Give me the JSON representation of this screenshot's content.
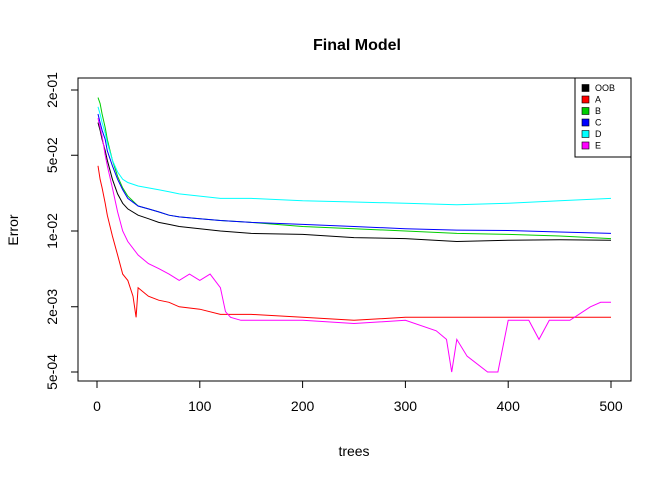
{
  "chart_data": {
    "type": "line",
    "title": "Final Model",
    "xlabel": "trees",
    "ylabel": "Error",
    "xlim": [
      0,
      500
    ],
    "ylim": [
      0.0004,
      0.2
    ],
    "y_scale": "log",
    "x_ticks": [
      0,
      100,
      200,
      300,
      400,
      500
    ],
    "x_tick_labels": [
      "0",
      "100",
      "200",
      "300",
      "400",
      "500"
    ],
    "y_ticks": [
      0.0005,
      0.002,
      0.01,
      0.05,
      0.2
    ],
    "y_tick_labels": [
      "5e-04",
      "2e-03",
      "1e-02",
      "5e-02",
      "2e-01"
    ],
    "legend_position": "top-right",
    "grid": false,
    "series": [
      {
        "name": "OOB",
        "color": "#000000",
        "x": [
          1,
          3,
          5,
          8,
          10,
          15,
          20,
          25,
          30,
          40,
          50,
          60,
          70,
          80,
          100,
          120,
          150,
          200,
          250,
          300,
          350,
          400,
          450,
          500
        ],
        "y": [
          0.1,
          0.085,
          0.07,
          0.055,
          0.045,
          0.03,
          0.022,
          0.018,
          0.016,
          0.014,
          0.013,
          0.012,
          0.0115,
          0.011,
          0.0105,
          0.01,
          0.0095,
          0.0093,
          0.0087,
          0.0085,
          0.008,
          0.0082,
          0.0083,
          0.0082
        ]
      },
      {
        "name": "A",
        "color": "#ff0000",
        "x": [
          1,
          3,
          5,
          8,
          10,
          15,
          20,
          25,
          30,
          35,
          38,
          40,
          50,
          60,
          70,
          80,
          100,
          120,
          150,
          200,
          250,
          300,
          350,
          400,
          450,
          500
        ],
        "y": [
          0.04,
          0.03,
          0.025,
          0.018,
          0.014,
          0.009,
          0.006,
          0.004,
          0.0035,
          0.0025,
          0.0016,
          0.003,
          0.0025,
          0.0023,
          0.0022,
          0.002,
          0.0019,
          0.0017,
          0.0017,
          0.0016,
          0.0015,
          0.0016,
          0.0016,
          0.0016,
          0.0016,
          0.0016
        ]
      },
      {
        "name": "B",
        "color": "#00cd00",
        "x": [
          1,
          3,
          5,
          8,
          10,
          15,
          20,
          25,
          30,
          40,
          50,
          60,
          70,
          80,
          100,
          120,
          150,
          200,
          250,
          300,
          350,
          400,
          450,
          500
        ],
        "y": [
          0.17,
          0.15,
          0.12,
          0.09,
          0.07,
          0.045,
          0.032,
          0.025,
          0.021,
          0.017,
          0.016,
          0.015,
          0.014,
          0.0135,
          0.013,
          0.0125,
          0.012,
          0.011,
          0.0105,
          0.01,
          0.0095,
          0.0093,
          0.009,
          0.0085
        ]
      },
      {
        "name": "C",
        "color": "#0000ff",
        "x": [
          1,
          3,
          5,
          8,
          10,
          15,
          20,
          25,
          30,
          40,
          50,
          60,
          70,
          80,
          100,
          120,
          150,
          200,
          250,
          300,
          350,
          400,
          450,
          500
        ],
        "y": [
          0.12,
          0.1,
          0.085,
          0.07,
          0.055,
          0.04,
          0.03,
          0.024,
          0.02,
          0.017,
          0.016,
          0.015,
          0.014,
          0.0135,
          0.013,
          0.0125,
          0.012,
          0.0115,
          0.011,
          0.0105,
          0.0102,
          0.0101,
          0.0098,
          0.0095
        ]
      },
      {
        "name": "D",
        "color": "#00ffff",
        "x": [
          1,
          3,
          5,
          8,
          10,
          15,
          20,
          25,
          30,
          40,
          50,
          60,
          70,
          80,
          100,
          120,
          150,
          200,
          250,
          300,
          350,
          400,
          450,
          500
        ],
        "y": [
          0.14,
          0.12,
          0.1,
          0.08,
          0.065,
          0.045,
          0.035,
          0.03,
          0.028,
          0.026,
          0.025,
          0.024,
          0.023,
          0.022,
          0.021,
          0.02,
          0.02,
          0.019,
          0.0185,
          0.018,
          0.0175,
          0.018,
          0.019,
          0.02
        ]
      },
      {
        "name": "E",
        "color": "#ff00ff",
        "x": [
          1,
          3,
          5,
          8,
          10,
          15,
          20,
          25,
          30,
          40,
          50,
          60,
          70,
          80,
          90,
          100,
          110,
          120,
          125,
          130,
          140,
          150,
          200,
          250,
          300,
          330,
          340,
          345,
          350,
          360,
          380,
          390,
          400,
          420,
          430,
          440,
          460,
          480,
          490,
          500
        ],
        "y": [
          0.11,
          0.09,
          0.075,
          0.05,
          0.04,
          0.025,
          0.015,
          0.01,
          0.008,
          0.006,
          0.005,
          0.0045,
          0.004,
          0.0035,
          0.004,
          0.0035,
          0.004,
          0.003,
          0.0018,
          0.0016,
          0.0015,
          0.0015,
          0.0015,
          0.0014,
          0.0015,
          0.0012,
          0.001,
          0.0005,
          0.001,
          0.0007,
          0.0005,
          0.0005,
          0.0015,
          0.0015,
          0.001,
          0.0015,
          0.0015,
          0.002,
          0.0022,
          0.0022
        ]
      }
    ]
  }
}
